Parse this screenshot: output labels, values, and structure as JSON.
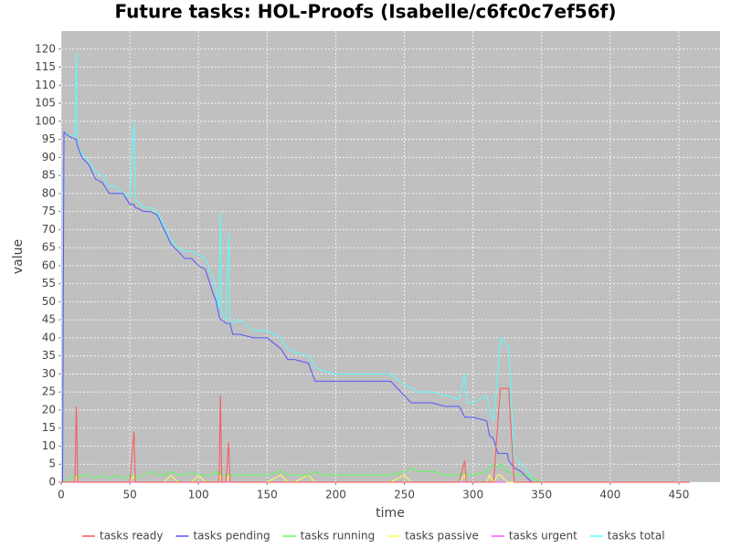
{
  "chart_data": {
    "type": "line",
    "title": "Future tasks: HOL-Proofs (Isabelle/c6fc0c7ef56f)",
    "x_label": "time",
    "y_label": "value",
    "xlim": [
      0,
      480
    ],
    "ylim": [
      0,
      125
    ],
    "xticks": [
      0,
      50,
      100,
      150,
      200,
      250,
      300,
      350,
      400,
      450
    ],
    "yticks": [
      0,
      5,
      10,
      15,
      20,
      25,
      30,
      35,
      40,
      45,
      50,
      55,
      60,
      65,
      70,
      75,
      80,
      85,
      90,
      95,
      100,
      105,
      110,
      115,
      120
    ],
    "grid": true,
    "legend": "bottom",
    "x": [
      0,
      1,
      2,
      5,
      10,
      11,
      12,
      15,
      20,
      25,
      30,
      35,
      40,
      45,
      50,
      53,
      54,
      55,
      60,
      65,
      70,
      75,
      80,
      85,
      90,
      95,
      100,
      105,
      110,
      113,
      115,
      116,
      117,
      120,
      122,
      123,
      125,
      130,
      140,
      150,
      160,
      165,
      170,
      180,
      185,
      190,
      200,
      210,
      220,
      230,
      240,
      250,
      255,
      260,
      270,
      280,
      290,
      294,
      295,
      296,
      300,
      310,
      312,
      315,
      318,
      320,
      325,
      326,
      330,
      335,
      340,
      343,
      350,
      400,
      458
    ],
    "series": [
      {
        "name": "tasks ready",
        "color": "#ff5555",
        "values": [
          0,
          0,
          0,
          0,
          0,
          21,
          0,
          0,
          0,
          0,
          0,
          0,
          0,
          0,
          0,
          14,
          0,
          0,
          0,
          0,
          0,
          0,
          0,
          0,
          0,
          0,
          0,
          0,
          0,
          0,
          0,
          24,
          0,
          0,
          11,
          0,
          0,
          0,
          0,
          0,
          0,
          0,
          0,
          0,
          0,
          0,
          0,
          0,
          0,
          0,
          0,
          0,
          0,
          0,
          0,
          0,
          0,
          6,
          0,
          0,
          0,
          0,
          0,
          0,
          16,
          26,
          26,
          26,
          0,
          0,
          0,
          0,
          0,
          0,
          0
        ]
      },
      {
        "name": "tasks pending",
        "color": "#5555ff",
        "values": [
          0,
          0,
          97,
          96,
          95,
          95,
          93,
          90,
          88,
          84,
          83,
          80,
          80,
          80,
          77,
          77,
          76,
          76,
          75,
          75,
          74,
          70,
          66,
          64,
          62,
          62,
          60,
          59,
          53,
          50,
          46,
          45,
          45,
          44,
          44,
          44,
          41,
          41,
          40,
          40,
          37,
          34,
          34,
          33,
          28,
          28,
          28,
          28,
          28,
          28,
          28,
          24,
          22,
          22,
          22,
          21,
          21,
          18,
          18,
          18,
          18,
          17,
          13,
          12,
          8,
          8,
          8,
          6,
          4,
          3,
          1,
          0,
          0,
          0,
          0
        ]
      },
      {
        "name": "tasks running",
        "color": "#55ff55",
        "values": [
          0,
          0,
          0,
          1,
          2,
          2,
          1,
          2,
          2,
          1,
          2,
          1,
          2,
          1,
          2,
          2,
          1,
          1,
          2,
          3,
          2,
          2,
          3,
          2,
          2,
          3,
          2,
          2,
          2,
          3,
          2,
          3,
          2,
          2,
          2,
          2,
          2,
          2,
          2,
          2,
          3,
          2,
          2,
          2,
          3,
          2,
          2,
          2,
          2,
          2,
          2,
          3,
          4,
          3,
          3,
          2,
          2,
          3,
          2,
          2,
          2,
          3,
          4,
          5,
          4,
          5,
          3,
          3,
          2,
          2,
          2,
          1,
          0,
          null,
          null
        ]
      },
      {
        "name": "tasks passive",
        "color": "#ffff55",
        "values": [
          0,
          0,
          0,
          0,
          0,
          2,
          0,
          0,
          0,
          0,
          0,
          0,
          0,
          0,
          0,
          2,
          0,
          0,
          0,
          0,
          0,
          0,
          2,
          0,
          0,
          0,
          2,
          0,
          0,
          0,
          0,
          2,
          0,
          0,
          2,
          0,
          0,
          0,
          0,
          0,
          2,
          0,
          0,
          2,
          0,
          0,
          0,
          0,
          0,
          0,
          0,
          2,
          0,
          0,
          0,
          0,
          0,
          2,
          0,
          0,
          0,
          0,
          2,
          0,
          2,
          2,
          0,
          0,
          0,
          0,
          0,
          0,
          0,
          null,
          null
        ]
      },
      {
        "name": "tasks urgent",
        "color": "#ff55ff",
        "values": [
          0,
          0,
          0,
          0,
          0,
          0,
          0,
          0,
          0,
          0,
          0,
          0,
          0,
          0,
          0,
          0,
          0,
          0,
          0,
          0,
          0,
          0,
          0,
          0,
          0,
          0,
          0,
          0,
          0,
          0,
          0,
          0,
          0,
          0,
          0,
          0,
          0,
          0,
          0,
          0,
          0,
          0,
          0,
          0,
          0,
          0,
          0,
          0,
          0,
          0,
          0,
          0,
          0,
          0,
          0,
          0,
          0,
          0,
          0,
          0,
          0,
          0,
          0,
          0,
          0,
          0,
          0,
          0,
          0,
          0,
          0,
          0,
          0,
          null,
          null
        ]
      },
      {
        "name": "tasks total",
        "color": "#55ffff",
        "values": [
          0,
          0,
          97,
          96,
          96,
          119,
          93,
          91,
          89,
          86,
          85,
          82,
          82,
          80,
          79,
          100,
          78,
          78,
          76,
          76,
          75,
          71,
          67,
          65,
          64,
          64,
          63,
          62,
          57,
          53,
          48,
          75,
          47,
          45,
          69,
          46,
          44,
          45,
          42,
          42,
          40,
          37,
          36,
          35,
          32,
          31,
          30,
          30,
          30,
          30,
          30,
          27,
          26,
          25,
          25,
          24,
          23,
          30,
          25,
          22,
          22,
          24,
          20,
          17,
          30,
          40,
          38,
          38,
          7,
          5,
          3,
          1,
          0,
          0,
          0
        ]
      }
    ]
  }
}
